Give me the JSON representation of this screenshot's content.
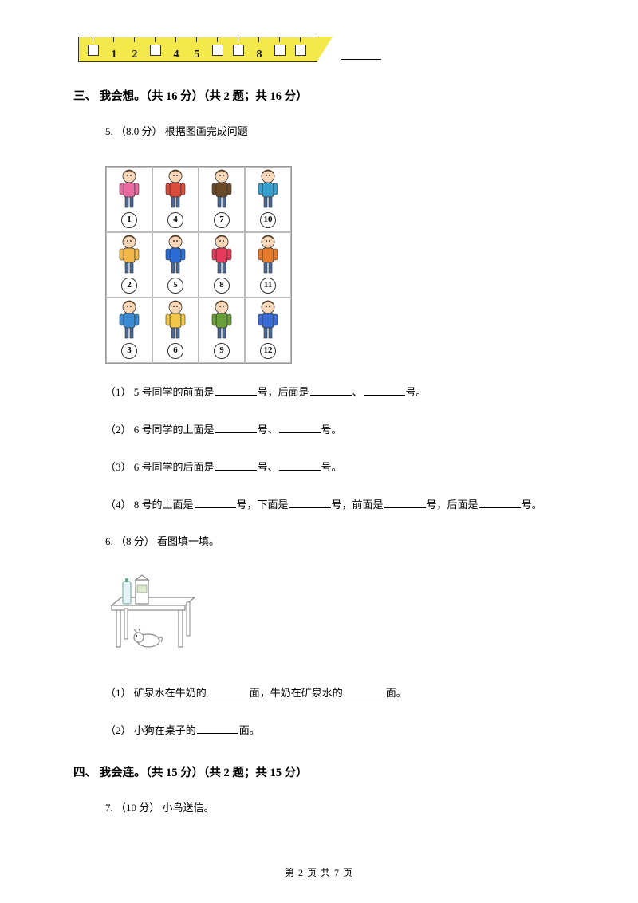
{
  "ruler": {
    "slots": [
      {
        "type": "box"
      },
      {
        "type": "num",
        "v": "1"
      },
      {
        "type": "num",
        "v": "2"
      },
      {
        "type": "box"
      },
      {
        "type": "num",
        "v": "4"
      },
      {
        "type": "num",
        "v": "5"
      },
      {
        "type": "box"
      },
      {
        "type": "box"
      },
      {
        "type": "num",
        "v": "8"
      },
      {
        "type": "box"
      },
      {
        "type": "box"
      }
    ],
    "body_color": "#f4e94a"
  },
  "section3": {
    "title": "三、 我会想。（共 16 分）（共 2 题；共 16 分）"
  },
  "q5": {
    "header": "5. （8.0 分） 根据图画完成问题",
    "grid": [
      [
        {
          "n": "1",
          "c": "#e86aa0"
        },
        {
          "n": "4",
          "c": "#d94b3a"
        },
        {
          "n": "7",
          "c": "#6b4a2a"
        },
        {
          "n": "10",
          "c": "#3aa0d0"
        }
      ],
      [
        {
          "n": "2",
          "c": "#f2b84a"
        },
        {
          "n": "5",
          "c": "#2a6bd4"
        },
        {
          "n": "8",
          "c": "#e63a5a"
        },
        {
          "n": "11",
          "c": "#e67a2a"
        }
      ],
      [
        {
          "n": "3",
          "c": "#3a8bd4"
        },
        {
          "n": "6",
          "c": "#f2c84a"
        },
        {
          "n": "9",
          "c": "#6aa03a"
        },
        {
          "n": "12",
          "c": "#3a6bd4"
        }
      ]
    ],
    "sub1_a": "（1） 5 号同学的前面是",
    "sub1_b": "号，后面是",
    "sub1_c": "、",
    "sub1_d": "号。",
    "sub2_a": "（2） 6 号同学的上面是",
    "sub2_b": "号、",
    "sub2_c": "号。",
    "sub3_a": "（3） 6 号同学的后面是",
    "sub3_b": "号、",
    "sub3_c": "号。",
    "sub4_a": "（4） 8 号的上面是",
    "sub4_b": "号，下面是",
    "sub4_c": "号，前面是",
    "sub4_d": "号，后面是",
    "sub4_e": "号。"
  },
  "q6": {
    "header": "6. （8 分） 看图填一填。",
    "sub1_a": "（1） 矿泉水在牛奶的",
    "sub1_b": "面，牛奶在矿泉水的",
    "sub1_c": "面。",
    "sub2_a": "（2） 小狗在桌子的",
    "sub2_b": "面。"
  },
  "section4": {
    "title": "四、 我会连。（共 15 分）（共 2 题；共 15 分）"
  },
  "q7": {
    "header": "7. （10 分） 小鸟送信。"
  },
  "footer": {
    "text": "第 2 页 共 7 页"
  }
}
